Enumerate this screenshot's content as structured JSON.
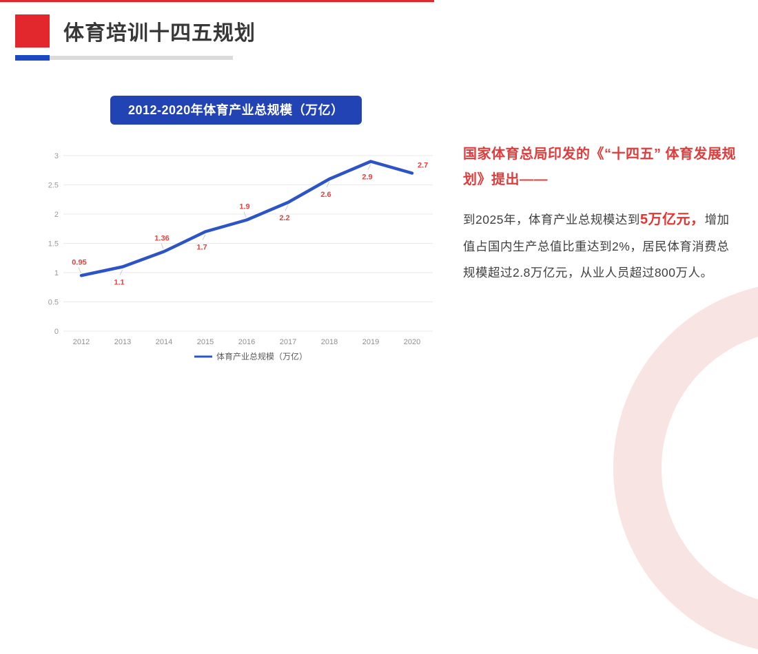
{
  "slide": {
    "title": "体育培训十四五规划",
    "chart_badge": "2012-2020年体育产业总规模（万亿）",
    "right_panel": {
      "heading": "国家体育总局印发的《“十四五” 体育发展规划》提出——",
      "body_prefix": "到2025年，体育产业总规模达到",
      "body_highlight": "5万亿元，",
      "body_suffix": "增加值占国内生产总值比重达到2%，居民体育消费总规模超过2.8万亿元，从业人员超过800万人。"
    }
  },
  "chart_data": {
    "type": "line",
    "title": "2012-2020年体育产业总规模（万亿）",
    "categories": [
      "2012",
      "2013",
      "2014",
      "2015",
      "2016",
      "2017",
      "2018",
      "2019",
      "2020"
    ],
    "series": [
      {
        "name": "体育产业总规模（万亿）",
        "values": [
          0.95,
          1.1,
          1.36,
          1.7,
          1.9,
          2.2,
          2.6,
          2.9,
          2.7
        ]
      }
    ],
    "xlabel": "",
    "ylabel": "",
    "ylim": [
      0,
      3
    ],
    "yticks": [
      0,
      0.5,
      1,
      1.5,
      2,
      2.5,
      3
    ],
    "grid": true,
    "legend_position": "bottom",
    "label_positions": [
      "above",
      "below",
      "above",
      "below",
      "above",
      "below",
      "below",
      "below",
      "above-right"
    ]
  },
  "colors": {
    "accent_red": "#e2282d",
    "badge_blue": "#2243b4",
    "underline_blue": "#1b49c4",
    "underline_gray": "#dbdbdb",
    "line_blue": "#2d54c7",
    "data_label_red": "#e5403c",
    "heading_red": "#e13c3c",
    "highlight_red": "#e8322f",
    "grid_gray": "#eaeaea",
    "tick_gray": "#999999",
    "legend_text": "#5a5a5a",
    "decor_pink": "#f9e4e4"
  }
}
